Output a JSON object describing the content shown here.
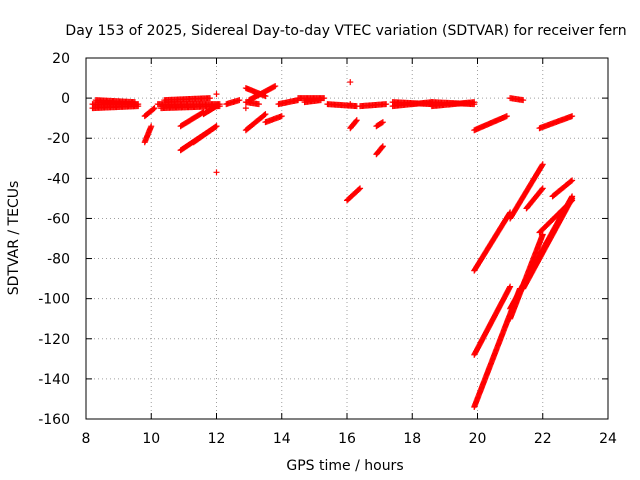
{
  "chart_data": {
    "type": "scatter",
    "title": "Day 153 of 2025, Sidereal Day-to-day VTEC variation (SDTVAR) for receiver fern",
    "xlabel": "GPS time / hours",
    "ylabel": "SDTVAR / TECUs",
    "xlim": [
      8,
      24
    ],
    "ylim": [
      -160,
      20
    ],
    "xticks": [
      8,
      10,
      12,
      14,
      16,
      18,
      20,
      22,
      24
    ],
    "yticks": [
      20,
      0,
      -20,
      -40,
      -60,
      -80,
      -100,
      -120,
      -140,
      -160
    ],
    "grid": true,
    "marker": "+",
    "color": "#ff0000",
    "segments": [
      {
        "x": [
          8.2,
          9.6
        ],
        "y": [
          -3,
          -3
        ]
      },
      {
        "x": [
          8.2,
          9.6
        ],
        "y": [
          -5,
          -4
        ]
      },
      {
        "x": [
          8.3,
          9.5
        ],
        "y": [
          -1,
          -2
        ]
      },
      {
        "x": [
          9.8,
          10.1
        ],
        "y": [
          -9,
          -5
        ]
      },
      {
        "x": [
          9.8,
          10.0
        ],
        "y": [
          -22,
          -14
        ]
      },
      {
        "x": [
          10.2,
          12.1
        ],
        "y": [
          -3,
          -3
        ]
      },
      {
        "x": [
          10.3,
          12.1
        ],
        "y": [
          -5,
          -4
        ]
      },
      {
        "x": [
          10.4,
          11.8
        ],
        "y": [
          -1,
          0
        ]
      },
      {
        "x": [
          10.9,
          11.6
        ],
        "y": [
          -14,
          -7
        ]
      },
      {
        "x": [
          11.6,
          12.0
        ],
        "y": [
          -8,
          -4
        ]
      },
      {
        "x": [
          10.9,
          12.0
        ],
        "y": [
          -26,
          -14
        ]
      },
      {
        "x": [
          11.3,
          12.0
        ],
        "y": [
          -22,
          -14
        ]
      },
      {
        "x": [
          12.3,
          12.7
        ],
        "y": [
          -3,
          -1
        ]
      },
      {
        "x": [
          12.9,
          13.5
        ],
        "y": [
          5,
          1
        ]
      },
      {
        "x": [
          13.0,
          13.8
        ],
        "y": [
          -1,
          6
        ]
      },
      {
        "x": [
          12.9,
          13.3
        ],
        "y": [
          -2,
          -3
        ]
      },
      {
        "x": [
          12.9,
          13.5
        ],
        "y": [
          -16,
          -8
        ]
      },
      {
        "x": [
          13.5,
          14.0
        ],
        "y": [
          -12,
          -9
        ]
      },
      {
        "x": [
          13.9,
          14.5
        ],
        "y": [
          -3,
          -1
        ]
      },
      {
        "x": [
          14.5,
          15.3
        ],
        "y": [
          0,
          0
        ]
      },
      {
        "x": [
          14.7,
          15.2
        ],
        "y": [
          -2,
          -1
        ]
      },
      {
        "x": [
          15.4,
          16.3
        ],
        "y": [
          -3,
          -4
        ]
      },
      {
        "x": [
          16.4,
          17.2
        ],
        "y": [
          -4,
          -3
        ]
      },
      {
        "x": [
          16.0,
          16.4
        ],
        "y": [
          -51,
          -45
        ]
      },
      {
        "x": [
          16.1,
          16.3
        ],
        "y": [
          -15,
          -11
        ]
      },
      {
        "x": [
          16.9,
          17.1
        ],
        "y": [
          -28,
          -24
        ]
      },
      {
        "x": [
          16.9,
          17.1
        ],
        "y": [
          -14,
          -12
        ]
      },
      {
        "x": [
          17.4,
          18.6
        ],
        "y": [
          -4,
          -2
        ]
      },
      {
        "x": [
          17.4,
          18.6
        ],
        "y": [
          -2,
          -3
        ]
      },
      {
        "x": [
          18.6,
          19.9
        ],
        "y": [
          -4,
          -2
        ]
      },
      {
        "x": [
          18.6,
          19.9
        ],
        "y": [
          -2,
          -3
        ]
      },
      {
        "x": [
          19.9,
          20.9
        ],
        "y": [
          -16,
          -9
        ]
      },
      {
        "x": [
          21.0,
          21.4
        ],
        "y": [
          0,
          -1
        ]
      },
      {
        "x": [
          21.9,
          22.9
        ],
        "y": [
          -15,
          -9
        ]
      },
      {
        "x": [
          19.9,
          21.0
        ],
        "y": [
          -86,
          -57
        ]
      },
      {
        "x": [
          19.9,
          21.0
        ],
        "y": [
          -128,
          -94
        ]
      },
      {
        "x": [
          19.9,
          21.3
        ],
        "y": [
          -154,
          -95
        ]
      },
      {
        "x": [
          21.0,
          22.0
        ],
        "y": [
          -60,
          -33
        ]
      },
      {
        "x": [
          21.0,
          22.0
        ],
        "y": [
          -110,
          -68
        ]
      },
      {
        "x": [
          21.0,
          22.9
        ],
        "y": [
          -105,
          -49
        ]
      },
      {
        "x": [
          21.4,
          22.9
        ],
        "y": [
          -95,
          -50
        ]
      },
      {
        "x": [
          21.5,
          22.0
        ],
        "y": [
          -55,
          -45
        ]
      },
      {
        "x": [
          21.9,
          22.9
        ],
        "y": [
          -67,
          -51
        ]
      },
      {
        "x": [
          22.3,
          22.9
        ],
        "y": [
          -49,
          -41
        ]
      }
    ],
    "points": [
      {
        "x": 12.0,
        "y": 2
      },
      {
        "x": 12.0,
        "y": -37
      },
      {
        "x": 16.1,
        "y": 8
      },
      {
        "x": 12.9,
        "y": -5
      },
      {
        "x": 16.1,
        "y": -3
      }
    ]
  }
}
